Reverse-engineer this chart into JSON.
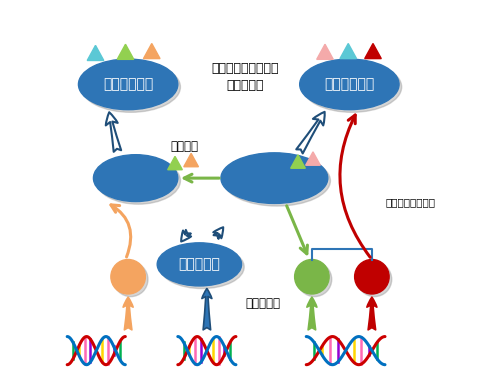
{
  "bg_color": "#ffffff",
  "ellipse_color": "#2E75B6",
  "ellipse_text_color": "#ffffff",
  "text_seirikassei": "生理活性タンパク質\nとして機能",
  "text_tosa": "糖鎖付加",
  "text_tanpaku": "タンパク質",
  "text_iden": "遺伝子発現",
  "text_top_left": "糖タンパク質",
  "text_top_right": "糖タンパク質",
  "text_enzyme": "糖鎖合成関連酵素",
  "color_cyan": "#5BC8D5",
  "color_lgreen": "#92D050",
  "color_orange": "#F4A460",
  "color_pink": "#F4AAAA",
  "color_red": "#C00000",
  "color_green": "#7AB648",
  "color_blue": "#2E75B6",
  "color_dkblue": "#1F4E79",
  "color_shadow": "#888888"
}
